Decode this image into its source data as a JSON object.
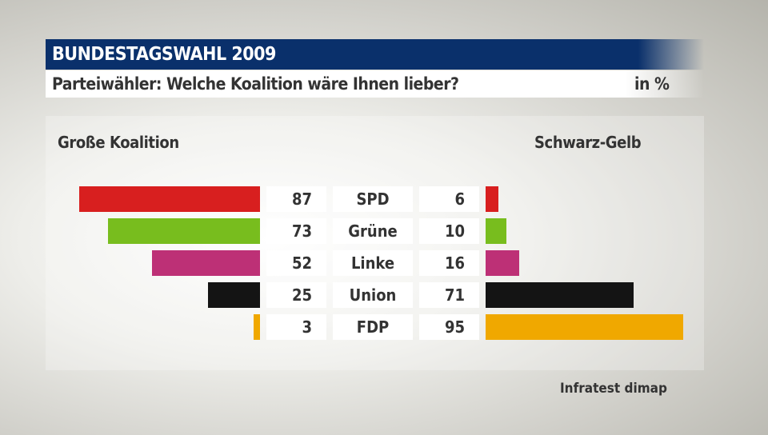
{
  "header": {
    "title": "BUNDESTAGSWAHL 2009",
    "subtitle": "Parteiwähler: Welche Koalition wäre Ihnen lieber?",
    "unit": "in %"
  },
  "chart_data": {
    "type": "bar",
    "orientation": "horizontal-diverging",
    "categories": [
      "SPD",
      "Grüne",
      "Linke",
      "Union",
      "FDP"
    ],
    "series": [
      {
        "name": "Große Koalition",
        "values": [
          87,
          73,
          52,
          25,
          3
        ],
        "side": "left"
      },
      {
        "name": "Schwarz-Gelb",
        "values": [
          6,
          10,
          16,
          71,
          95
        ],
        "side": "right"
      }
    ],
    "colors": [
      "#d81f1f",
      "#78bd1e",
      "#bd3076",
      "#141414",
      "#f0a800"
    ],
    "unit": "in %",
    "grid": false
  },
  "source": "Infratest dimap"
}
